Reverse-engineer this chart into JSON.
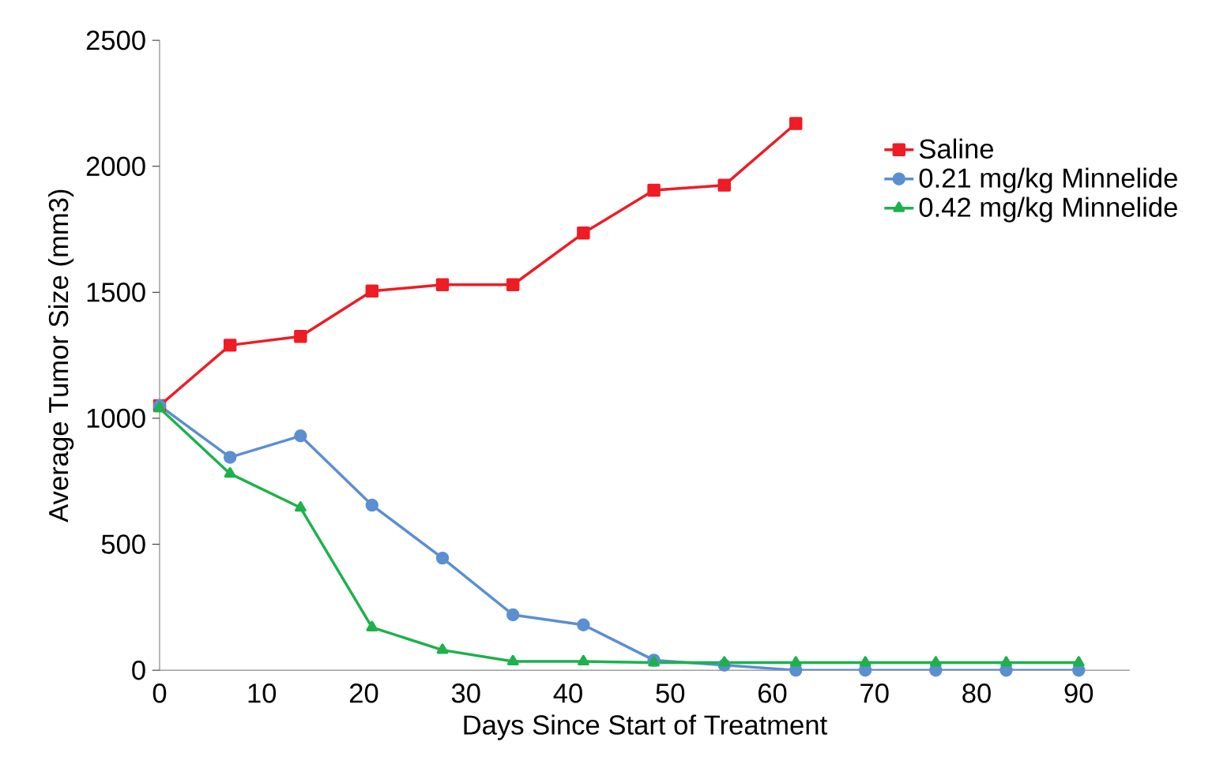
{
  "chart_data": {
    "type": "line",
    "xlabel": "Days Since Start of Treatment",
    "ylabel": "Average Tumor Size (mm3)",
    "xlim": [
      0,
      95
    ],
    "xticks": [
      0,
      10,
      20,
      30,
      40,
      50,
      60,
      70,
      80,
      90
    ],
    "ylim": [
      0,
      2500
    ],
    "yticks": [
      0,
      500,
      1000,
      1500,
      2000,
      2500
    ],
    "legend": "right",
    "grid": false,
    "series": [
      {
        "name": "Saline",
        "color": "#ee1c25",
        "marker": "square",
        "x": [
          0,
          6.9,
          13.8,
          20.8,
          27.7,
          34.6,
          41.5,
          48.4,
          55.3,
          62.3
        ],
        "values": [
          1050,
          1290,
          1325,
          1505,
          1530,
          1530,
          1735,
          1905,
          1925,
          2170
        ]
      },
      {
        "name": "0.21 mg/kg Minnelide",
        "color": "#5b8fd0",
        "marker": "circle",
        "x": [
          0,
          6.9,
          13.8,
          20.8,
          27.7,
          34.6,
          41.5,
          48.4,
          55.3,
          62.3,
          69.1,
          76,
          82.9,
          90
        ],
        "values": [
          1050,
          845,
          930,
          655,
          445,
          220,
          180,
          40,
          20,
          0,
          0,
          0,
          0,
          0
        ]
      },
      {
        "name": "0.42 mg/kg Minnelide",
        "color": "#1db14b",
        "marker": "triangle",
        "x": [
          0,
          6.9,
          13.8,
          20.8,
          27.7,
          34.6,
          41.5,
          48.4,
          55.3,
          62.3,
          69.1,
          76,
          82.9,
          90
        ],
        "values": [
          1040,
          780,
          645,
          170,
          80,
          35,
          35,
          30,
          30,
          30,
          30,
          30,
          30,
          30
        ]
      }
    ]
  }
}
